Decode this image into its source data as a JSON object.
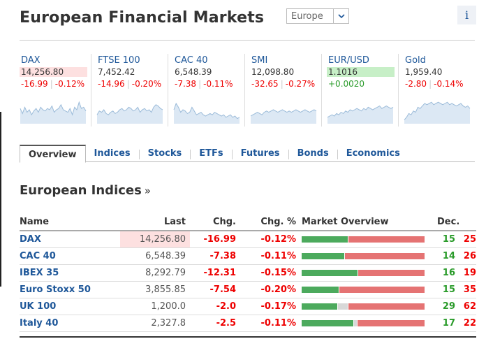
{
  "title": "European Financial Markets",
  "region_select": {
    "value": "Europe"
  },
  "info_icon": "i",
  "tiles": [
    {
      "name": "DAX",
      "last": "14,256.80",
      "chg": "-16.99",
      "chg_pct": "-0.12%",
      "direction": "down",
      "highlight": true,
      "spark": [
        0.55,
        0.35,
        0.6,
        0.4,
        0.5,
        0.3,
        0.45,
        0.55,
        0.4,
        0.6,
        0.5,
        0.45,
        0.55,
        0.5,
        0.65,
        0.4,
        0.5,
        0.55,
        0.7,
        0.5,
        0.45,
        0.4,
        0.55,
        0.3,
        0.6,
        0.5,
        0.8,
        0.55,
        0.6,
        0.45
      ]
    },
    {
      "name": "FTSE 100",
      "last": "7,452.42",
      "chg": "-14.96",
      "chg_pct": "-0.20%",
      "direction": "down",
      "highlight": false,
      "spark": [
        0.3,
        0.45,
        0.4,
        0.5,
        0.35,
        0.3,
        0.4,
        0.45,
        0.35,
        0.4,
        0.5,
        0.55,
        0.45,
        0.5,
        0.6,
        0.55,
        0.45,
        0.5,
        0.6,
        0.4,
        0.5,
        0.55,
        0.45,
        0.5,
        0.4,
        0.6,
        0.7,
        0.65,
        0.55,
        0.5
      ]
    },
    {
      "name": "CAC 40",
      "last": "6,548.39",
      "chg": "-7.38",
      "chg_pct": "-0.11%",
      "direction": "down",
      "highlight": false,
      "spark": [
        0.5,
        0.75,
        0.6,
        0.4,
        0.5,
        0.45,
        0.35,
        0.4,
        0.6,
        0.45,
        0.3,
        0.35,
        0.4,
        0.3,
        0.25,
        0.3,
        0.35,
        0.3,
        0.4,
        0.35,
        0.3,
        0.25,
        0.3,
        0.2,
        0.25,
        0.3,
        0.2,
        0.25,
        0.15,
        0.2
      ]
    },
    {
      "name": "SMI",
      "last": "12,098.80",
      "chg": "-32.65",
      "chg_pct": "-0.27%",
      "direction": "down",
      "highlight": false,
      "spark": [
        0.25,
        0.3,
        0.35,
        0.4,
        0.35,
        0.3,
        0.4,
        0.45,
        0.4,
        0.45,
        0.5,
        0.45,
        0.4,
        0.45,
        0.5,
        0.45,
        0.4,
        0.45,
        0.4,
        0.45,
        0.5,
        0.45,
        0.4,
        0.45,
        0.5,
        0.45,
        0.4,
        0.45,
        0.5,
        0.45
      ]
    },
    {
      "name": "EUR/USD",
      "last": "1.1016",
      "chg": "+0.0020",
      "chg_pct": "",
      "direction": "up",
      "highlight": true,
      "spark": [
        0.2,
        0.25,
        0.3,
        0.25,
        0.35,
        0.3,
        0.4,
        0.35,
        0.45,
        0.4,
        0.5,
        0.45,
        0.5,
        0.55,
        0.5,
        0.45,
        0.55,
        0.5,
        0.6,
        0.55,
        0.5,
        0.55,
        0.6,
        0.65,
        0.55,
        0.6,
        0.65,
        0.6,
        0.55,
        0.6
      ]
    },
    {
      "name": "Gold",
      "last": "1,959.40",
      "chg": "-2.80",
      "chg_pct": "-0.14%",
      "direction": "down",
      "highlight": false,
      "spark": [
        0.1,
        0.2,
        0.35,
        0.3,
        0.45,
        0.4,
        0.6,
        0.55,
        0.65,
        0.75,
        0.7,
        0.75,
        0.8,
        0.7,
        0.75,
        0.8,
        0.75,
        0.7,
        0.75,
        0.8,
        0.7,
        0.75,
        0.7,
        0.65,
        0.7,
        0.75,
        0.65,
        0.6,
        0.65,
        0.55
      ]
    }
  ],
  "tabs": [
    "Overview",
    "Indices",
    "Stocks",
    "ETFs",
    "Futures",
    "Bonds",
    "Economics"
  ],
  "active_tab": "Overview",
  "section": {
    "title": "European Indices",
    "more": "»"
  },
  "table": {
    "headers": {
      "name": "Name",
      "last": "Last",
      "chg": "Chg.",
      "chg_pct": "Chg. %",
      "overview": "Market Overview",
      "dec": "Dec."
    },
    "rows": [
      {
        "name": "DAX",
        "last": "14,256.80",
        "chg": "-16.99",
        "chg_pct": "-0.12%",
        "adv": 15,
        "unch": 0,
        "dec": 25,
        "highlight": true
      },
      {
        "name": "CAC 40",
        "last": "6,548.39",
        "chg": "-7.38",
        "chg_pct": "-0.11%",
        "adv": 14,
        "unch": 0,
        "dec": 26,
        "highlight": false
      },
      {
        "name": "IBEX 35",
        "last": "8,292.79",
        "chg": "-12.31",
        "chg_pct": "-0.15%",
        "adv": 16,
        "unch": 0,
        "dec": 19,
        "highlight": false
      },
      {
        "name": "Euro Stoxx 50",
        "last": "3,855.85",
        "chg": "-7.54",
        "chg_pct": "-0.20%",
        "adv": 15,
        "unch": 0,
        "dec": 35,
        "highlight": false
      },
      {
        "name": "UK 100",
        "last": "1,200.0",
        "chg": "-2.0",
        "chg_pct": "-0.17%",
        "adv": 29,
        "unch": 8,
        "dec": 62,
        "highlight": false
      },
      {
        "name": "Italy 40",
        "last": "2,327.8",
        "chg": "-2.5",
        "chg_pct": "-0.11%",
        "adv": 17,
        "unch": 1,
        "dec": 22,
        "highlight": false
      }
    ]
  },
  "colors": {
    "link": "#1e5799",
    "negative": "#e00000",
    "positive": "#2a9b2a",
    "advancers_bar": "#4caa5d",
    "decliners_bar": "#e57373"
  }
}
